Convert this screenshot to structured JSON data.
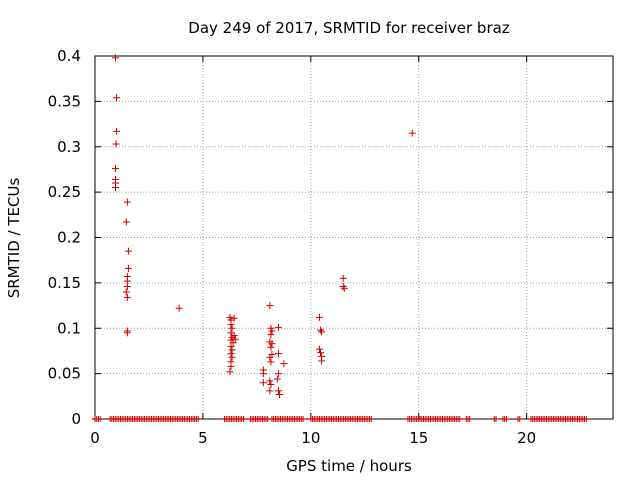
{
  "chart_data": {
    "type": "scatter",
    "title": "Day 249 of 2017, SRMTID for receiver braz",
    "xlabel": "GPS time / hours",
    "ylabel": "SRMTID / TECUs",
    "xlim": [
      0,
      24
    ],
    "ylim": [
      0,
      0.4
    ],
    "xticks": [
      0,
      5,
      10,
      15,
      20
    ],
    "xtick_labels": [
      "0",
      "5",
      "10",
      "15",
      "20"
    ],
    "yticks": [
      0,
      0.05,
      0.1,
      0.15,
      0.2,
      0.25,
      0.3,
      0.35,
      0.4
    ],
    "ytick_labels": [
      "0",
      "0.05",
      "0.1",
      "0.15",
      "0.2",
      "0.25",
      "0.3",
      "0.35",
      "0.4"
    ],
    "grid": true,
    "marker": "+",
    "color": "#cc0000",
    "series": [
      {
        "name": "SRMTID",
        "points": [
          [
            0.95,
            0.398
          ],
          [
            1.0,
            0.354
          ],
          [
            1.0,
            0.317
          ],
          [
            0.98,
            0.303
          ],
          [
            0.95,
            0.276
          ],
          [
            0.95,
            0.264
          ],
          [
            0.95,
            0.26
          ],
          [
            0.95,
            0.255
          ],
          [
            1.5,
            0.239
          ],
          [
            1.45,
            0.217
          ],
          [
            1.55,
            0.185
          ],
          [
            1.55,
            0.166
          ],
          [
            1.5,
            0.157
          ],
          [
            1.5,
            0.152
          ],
          [
            1.5,
            0.146
          ],
          [
            1.45,
            0.14
          ],
          [
            1.5,
            0.134
          ],
          [
            1.5,
            0.097
          ],
          [
            1.5,
            0.095
          ],
          [
            3.9,
            0.122
          ],
          [
            6.25,
            0.112
          ],
          [
            6.3,
            0.109
          ],
          [
            6.45,
            0.111
          ],
          [
            6.3,
            0.104
          ],
          [
            6.35,
            0.1
          ],
          [
            6.3,
            0.095
          ],
          [
            6.35,
            0.09
          ],
          [
            6.45,
            0.092
          ],
          [
            6.5,
            0.088
          ],
          [
            6.3,
            0.087
          ],
          [
            6.4,
            0.084
          ],
          [
            6.3,
            0.08
          ],
          [
            6.35,
            0.076
          ],
          [
            6.3,
            0.072
          ],
          [
            6.35,
            0.068
          ],
          [
            6.3,
            0.063
          ],
          [
            6.3,
            0.058
          ],
          [
            6.25,
            0.052
          ],
          [
            7.8,
            0.054
          ],
          [
            7.8,
            0.05
          ],
          [
            7.8,
            0.04
          ],
          [
            8.1,
            0.125
          ],
          [
            8.15,
            0.1
          ],
          [
            8.2,
            0.097
          ],
          [
            8.15,
            0.093
          ],
          [
            8.1,
            0.085
          ],
          [
            8.2,
            0.083
          ],
          [
            8.15,
            0.079
          ],
          [
            8.2,
            0.071
          ],
          [
            8.1,
            0.068
          ],
          [
            8.15,
            0.063
          ],
          [
            8.1,
            0.042
          ],
          [
            8.15,
            0.038
          ],
          [
            8.1,
            0.031
          ],
          [
            8.5,
            0.101
          ],
          [
            8.5,
            0.072
          ],
          [
            8.5,
            0.05
          ],
          [
            8.45,
            0.044
          ],
          [
            8.5,
            0.031
          ],
          [
            8.55,
            0.027
          ],
          [
            8.75,
            0.061
          ],
          [
            10.4,
            0.112
          ],
          [
            10.45,
            0.098
          ],
          [
            10.5,
            0.096
          ],
          [
            10.4,
            0.077
          ],
          [
            10.45,
            0.073
          ],
          [
            10.5,
            0.069
          ],
          [
            10.5,
            0.064
          ],
          [
            11.5,
            0.155
          ],
          [
            11.5,
            0.146
          ],
          [
            11.55,
            0.144
          ],
          [
            14.7,
            0.315
          ]
        ]
      }
    ],
    "zero_segments": [
      [
        0,
        0.25
      ],
      [
        0.7,
        4.8
      ],
      [
        6.0,
        6.9
      ],
      [
        7.2,
        8.0
      ],
      [
        8.2,
        9.7
      ],
      [
        10.0,
        12.8
      ],
      [
        14.5,
        16.9
      ],
      [
        17.2,
        17.4
      ],
      [
        18.5,
        18.6
      ],
      [
        18.9,
        19.1
      ],
      [
        19.6,
        19.7
      ],
      [
        20.2,
        22.8
      ]
    ]
  }
}
